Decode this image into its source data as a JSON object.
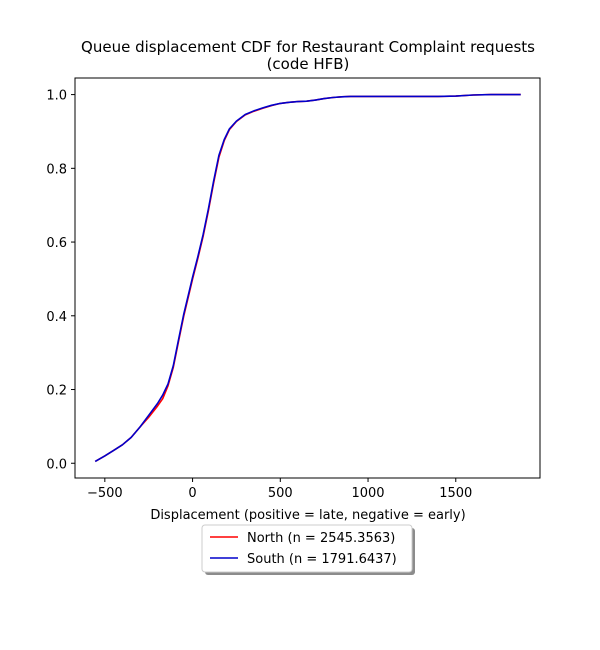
{
  "chart_data": {
    "type": "line",
    "title": [
      "Queue displacement CDF for Restaurant Complaint  requests",
      "(code HFB)"
    ],
    "xlabel": "Displacement (positive = late, negative = early)",
    "ylabel": "",
    "xlim": [
      -670,
      1980
    ],
    "ylim": [
      -0.04,
      1.045
    ],
    "xticks": [
      -500,
      0,
      500,
      1000,
      1500
    ],
    "xtick_labels": [
      "−500",
      "0",
      "500",
      "1000",
      "1500"
    ],
    "yticks": [
      0.0,
      0.2,
      0.4,
      0.6,
      0.8,
      1.0
    ],
    "ytick_labels": [
      "0.0",
      "0.2",
      "0.4",
      "0.6",
      "0.8",
      "1.0"
    ],
    "grid": false,
    "legend_position": "below",
    "series": [
      {
        "name": "North (n = 2545.3563)",
        "color": "#ff0000",
        "x": [
          -555,
          -500,
          -450,
          -400,
          -350,
          -300,
          -250,
          -200,
          -170,
          -140,
          -110,
          -80,
          -50,
          -20,
          0,
          30,
          60,
          90,
          120,
          150,
          180,
          210,
          250,
          300,
          350,
          400,
          450,
          500,
          550,
          600,
          650,
          700,
          750,
          800,
          850,
          900,
          1000,
          1200,
          1400,
          1500,
          1600,
          1700,
          1870
        ],
        "y": [
          0.005,
          0.02,
          0.035,
          0.05,
          0.07,
          0.098,
          0.125,
          0.155,
          0.175,
          0.21,
          0.26,
          0.33,
          0.4,
          0.46,
          0.5,
          0.555,
          0.615,
          0.685,
          0.76,
          0.83,
          0.875,
          0.905,
          0.927,
          0.945,
          0.955,
          0.963,
          0.97,
          0.976,
          0.979,
          0.981,
          0.982,
          0.985,
          0.989,
          0.992,
          0.994,
          0.995,
          0.995,
          0.995,
          0.995,
          0.996,
          0.999,
          1.0,
          1.0
        ]
      },
      {
        "name": "South (n = 1791.6437)",
        "color": "#0000cc",
        "x": [
          -555,
          -500,
          -450,
          -400,
          -350,
          -300,
          -250,
          -200,
          -170,
          -140,
          -110,
          -80,
          -50,
          -20,
          0,
          30,
          60,
          90,
          120,
          150,
          180,
          210,
          250,
          300,
          350,
          400,
          450,
          500,
          550,
          600,
          650,
          700,
          750,
          800,
          850,
          900,
          1000,
          1200,
          1400,
          1500,
          1600,
          1700,
          1870
        ],
        "y": [
          0.005,
          0.02,
          0.035,
          0.05,
          0.07,
          0.098,
          0.13,
          0.162,
          0.185,
          0.215,
          0.265,
          0.335,
          0.405,
          0.465,
          0.505,
          0.56,
          0.62,
          0.69,
          0.765,
          0.835,
          0.878,
          0.907,
          0.928,
          0.946,
          0.956,
          0.964,
          0.971,
          0.976,
          0.979,
          0.981,
          0.982,
          0.985,
          0.989,
          0.992,
          0.994,
          0.995,
          0.995,
          0.995,
          0.995,
          0.996,
          0.999,
          1.0,
          1.0
        ]
      }
    ]
  }
}
